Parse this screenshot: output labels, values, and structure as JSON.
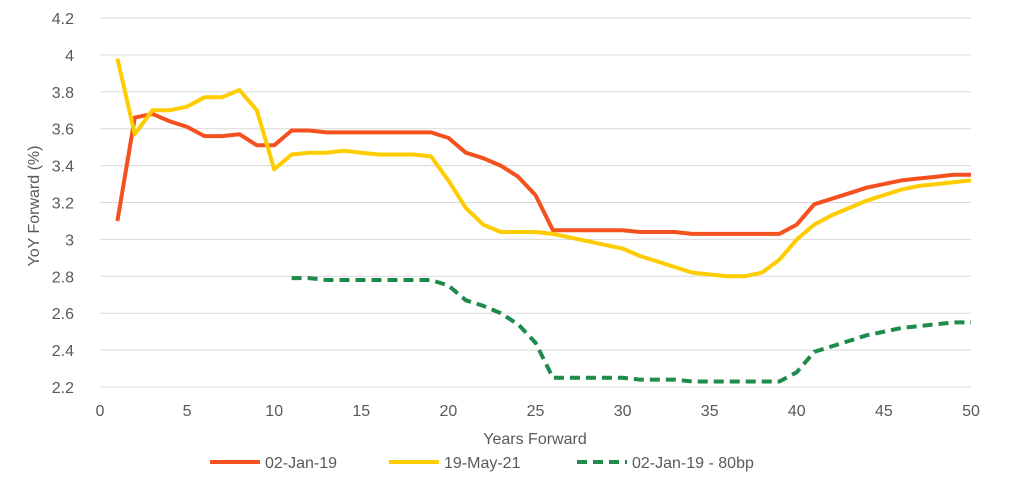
{
  "chart_data": {
    "type": "line",
    "title": "",
    "xlabel": "Years Forward",
    "ylabel": "YoY Forward (%)",
    "xlim": [
      0,
      50
    ],
    "ylim": [
      2.2,
      4.2
    ],
    "x_ticks": [
      0,
      5,
      10,
      15,
      20,
      25,
      30,
      35,
      40,
      45,
      50
    ],
    "y_ticks": [
      2.2,
      2.4,
      2.6,
      2.8,
      3,
      3.2,
      3.4,
      3.6,
      3.8,
      4,
      4.2
    ],
    "grid": "horizontal",
    "legend_position": "bottom",
    "series": [
      {
        "name": "02-Jan-19",
        "color": "#f4511e",
        "style": "solid",
        "points": [
          [
            1,
            3.1
          ],
          [
            2,
            3.66
          ],
          [
            3,
            3.68
          ],
          [
            4,
            3.64
          ],
          [
            5,
            3.61
          ],
          [
            6,
            3.56
          ],
          [
            7,
            3.56
          ],
          [
            8,
            3.57
          ],
          [
            9,
            3.51
          ],
          [
            10,
            3.51
          ],
          [
            11,
            3.59
          ],
          [
            12,
            3.59
          ],
          [
            13,
            3.58
          ],
          [
            14,
            3.58
          ],
          [
            15,
            3.58
          ],
          [
            16,
            3.58
          ],
          [
            17,
            3.58
          ],
          [
            18,
            3.58
          ],
          [
            19,
            3.58
          ],
          [
            20,
            3.55
          ],
          [
            21,
            3.47
          ],
          [
            22,
            3.44
          ],
          [
            23,
            3.4
          ],
          [
            24,
            3.34
          ],
          [
            25,
            3.24
          ],
          [
            26,
            3.05
          ],
          [
            27,
            3.05
          ],
          [
            28,
            3.05
          ],
          [
            29,
            3.05
          ],
          [
            30,
            3.05
          ],
          [
            31,
            3.04
          ],
          [
            32,
            3.04
          ],
          [
            33,
            3.04
          ],
          [
            34,
            3.03
          ],
          [
            35,
            3.03
          ],
          [
            36,
            3.03
          ],
          [
            37,
            3.03
          ],
          [
            38,
            3.03
          ],
          [
            39,
            3.03
          ],
          [
            40,
            3.08
          ],
          [
            41,
            3.19
          ],
          [
            42,
            3.22
          ],
          [
            43,
            3.25
          ],
          [
            44,
            3.28
          ],
          [
            45,
            3.3
          ],
          [
            46,
            3.32
          ],
          [
            47,
            3.33
          ],
          [
            48,
            3.34
          ],
          [
            49,
            3.35
          ],
          [
            50,
            3.35
          ]
        ]
      },
      {
        "name": "19-May-21",
        "color": "#ffcc00",
        "style": "solid",
        "points": [
          [
            1,
            3.98
          ],
          [
            2,
            3.57
          ],
          [
            3,
            3.7
          ],
          [
            4,
            3.7
          ],
          [
            5,
            3.72
          ],
          [
            6,
            3.77
          ],
          [
            7,
            3.77
          ],
          [
            8,
            3.81
          ],
          [
            9,
            3.7
          ],
          [
            10,
            3.38
          ],
          [
            11,
            3.46
          ],
          [
            12,
            3.47
          ],
          [
            13,
            3.47
          ],
          [
            14,
            3.48
          ],
          [
            15,
            3.47
          ],
          [
            16,
            3.46
          ],
          [
            17,
            3.46
          ],
          [
            18,
            3.46
          ],
          [
            19,
            3.45
          ],
          [
            20,
            3.32
          ],
          [
            21,
            3.17
          ],
          [
            22,
            3.08
          ],
          [
            23,
            3.04
          ],
          [
            24,
            3.04
          ],
          [
            25,
            3.04
          ],
          [
            26,
            3.03
          ],
          [
            27,
            3.01
          ],
          [
            28,
            2.99
          ],
          [
            29,
            2.97
          ],
          [
            30,
            2.95
          ],
          [
            31,
            2.91
          ],
          [
            32,
            2.88
          ],
          [
            33,
            2.85
          ],
          [
            34,
            2.82
          ],
          [
            35,
            2.81
          ],
          [
            36,
            2.8
          ],
          [
            37,
            2.8
          ],
          [
            38,
            2.82
          ],
          [
            39,
            2.89
          ],
          [
            40,
            3.0
          ],
          [
            41,
            3.08
          ],
          [
            42,
            3.13
          ],
          [
            43,
            3.17
          ],
          [
            44,
            3.21
          ],
          [
            45,
            3.24
          ],
          [
            46,
            3.27
          ],
          [
            47,
            3.29
          ],
          [
            48,
            3.3
          ],
          [
            49,
            3.31
          ],
          [
            50,
            3.32
          ]
        ]
      },
      {
        "name": "02-Jan-19 - 80bp",
        "color": "#1e8a4c",
        "style": "dashed",
        "points": [
          [
            11,
            2.79
          ],
          [
            12,
            2.79
          ],
          [
            13,
            2.78
          ],
          [
            14,
            2.78
          ],
          [
            15,
            2.78
          ],
          [
            16,
            2.78
          ],
          [
            17,
            2.78
          ],
          [
            18,
            2.78
          ],
          [
            19,
            2.78
          ],
          [
            20,
            2.75
          ],
          [
            21,
            2.67
          ],
          [
            22,
            2.64
          ],
          [
            23,
            2.6
          ],
          [
            24,
            2.54
          ],
          [
            25,
            2.44
          ],
          [
            26,
            2.25
          ],
          [
            27,
            2.25
          ],
          [
            28,
            2.25
          ],
          [
            29,
            2.25
          ],
          [
            30,
            2.25
          ],
          [
            31,
            2.24
          ],
          [
            32,
            2.24
          ],
          [
            33,
            2.24
          ],
          [
            34,
            2.23
          ],
          [
            35,
            2.23
          ],
          [
            36,
            2.23
          ],
          [
            37,
            2.23
          ],
          [
            38,
            2.23
          ],
          [
            39,
            2.23
          ],
          [
            40,
            2.28
          ],
          [
            41,
            2.39
          ],
          [
            42,
            2.42
          ],
          [
            43,
            2.45
          ],
          [
            44,
            2.48
          ],
          [
            45,
            2.5
          ],
          [
            46,
            2.52
          ],
          [
            47,
            2.53
          ],
          [
            48,
            2.54
          ],
          [
            49,
            2.55
          ],
          [
            50,
            2.55
          ]
        ]
      }
    ]
  }
}
